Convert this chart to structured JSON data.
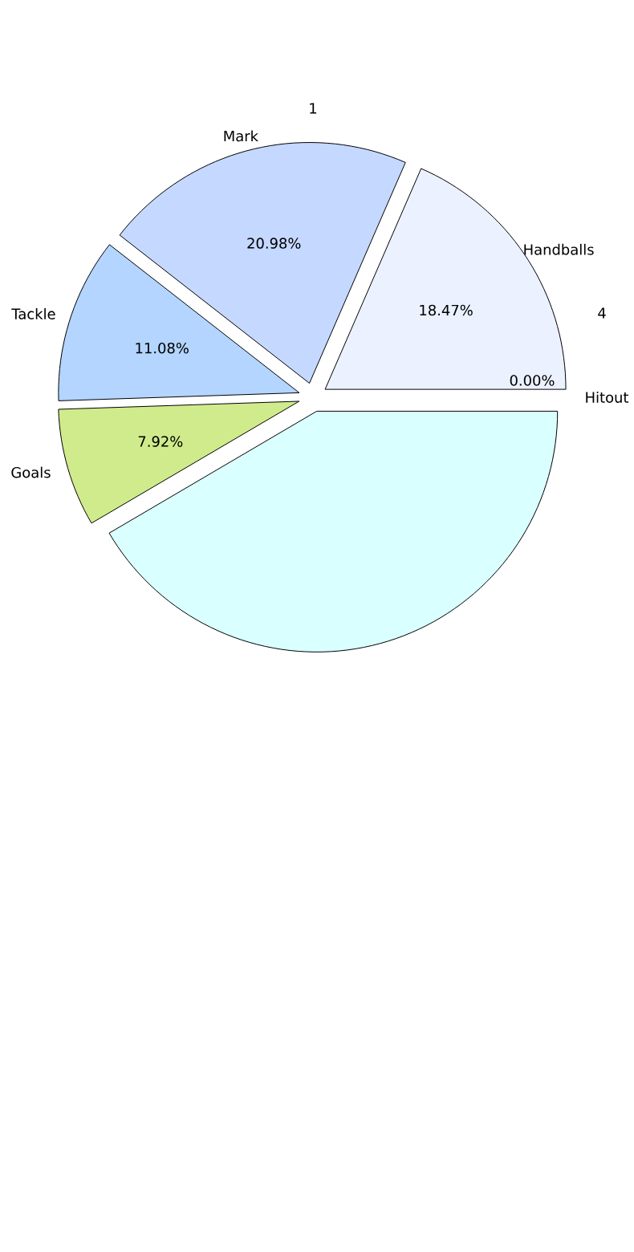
{
  "chart_data": {
    "type": "pie",
    "categories": [
      "Handballs",
      "Mark",
      "Tackle",
      "Goals",
      null,
      "Hitout"
    ],
    "values": [
      18.47,
      20.98,
      11.08,
      7.92,
      41.55,
      0.0
    ],
    "colors": [
      "#ebf1ff",
      "#c5d8ff",
      "#b3d5ff",
      "#cfeb8c",
      "#d9ffff",
      "#cccccc"
    ],
    "value_labels": [
      "18.47%",
      "20.98%",
      "11.08%",
      "7.92%",
      null,
      "0.00%"
    ],
    "annotations": [
      "1",
      "4"
    ]
  }
}
